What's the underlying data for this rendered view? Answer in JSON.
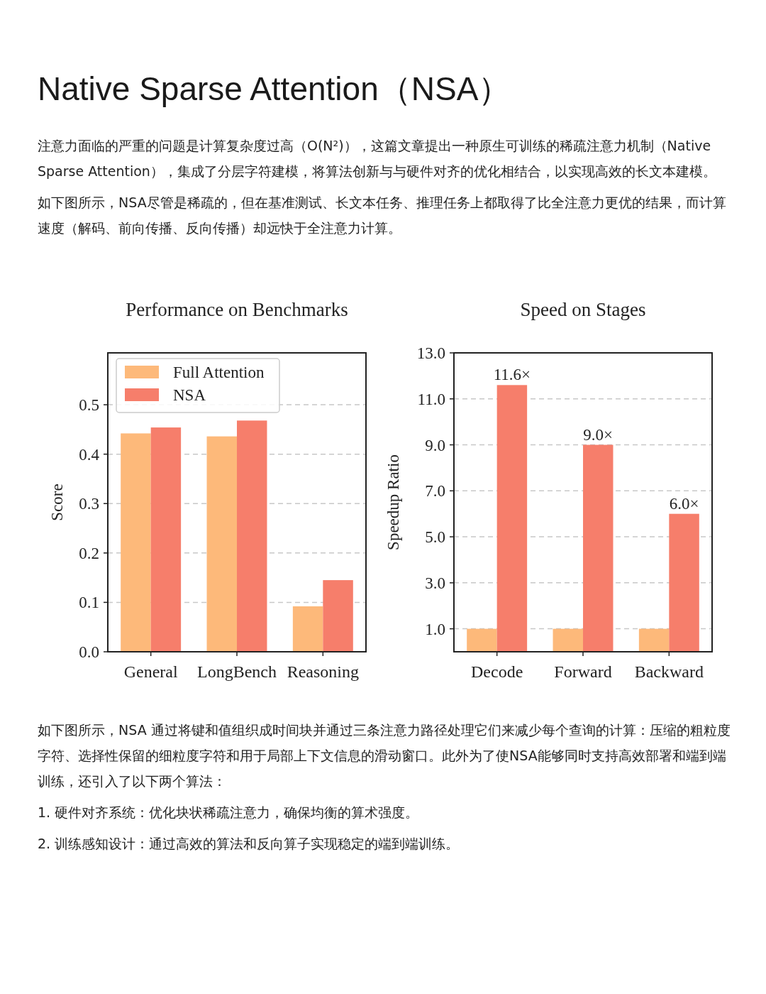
{
  "chart_data": [
    {
      "type": "other",
      "title": "Native Sparse Attention（NSA）",
      "annotations": [
        "注意力面临的严重的问题是计算复杂度过高（O(N²)），这篇文章提出一种原生可训练的稀疏注意力机制（Native Sparse Attention），集成了分层字符建模，将算法创新与与硬件对齐的优化相结合，以实现高效的长文本建模。",
        "如下图所示，NSA尽管是稀疏的，但在基准测试、长文本任务、推理任务上都取得了比全注意力更优的结果，而计算速度（解码、前向传播、反向传播）却远快于全注意力计算。"
      ]
    },
    {
      "type": "bar",
      "title": "Performance on Benchmarks",
      "ylabel": "Score",
      "categories": [
        "General",
        "LongBench",
        "Reasoning"
      ],
      "series": [
        {
          "name": "Full Attention",
          "color": "#fdb97a",
          "values": [
            0.442,
            0.436,
            0.092
          ]
        },
        {
          "name": "NSA",
          "color": "#f67e6b",
          "values": [
            0.454,
            0.468,
            0.145
          ]
        }
      ],
      "ylim": [
        0,
        0.605
      ],
      "yticks": [
        {
          "value": 0,
          "label": "0.0"
        },
        0.1,
        0.2,
        0.3,
        0.4,
        0.5
      ],
      "grid": "y",
      "legend": "top left"
    },
    {
      "type": "bar",
      "title": "Speed on Stages",
      "ylabel": "Speedup Ratio",
      "categories": [
        "Decode",
        "Forward",
        "Backward"
      ],
      "series": [
        {
          "color": "#fdb97a",
          "values": [
            1,
            1,
            1
          ]
        },
        {
          "color": "#f67e6b",
          "values": [
            11.6,
            9.0,
            6.0
          ],
          "value_labels": [
            "11.6×",
            "9.0×",
            "6.0×"
          ]
        }
      ],
      "ylim": [
        0,
        13
      ],
      "yticks": [
        {
          "value": 1,
          "label": "1.0"
        },
        {
          "value": 3,
          "label": "3.0"
        },
        {
          "value": 5,
          "label": "5.0"
        },
        {
          "value": 7,
          "label": "7.0"
        },
        {
          "value": 9,
          "label": "9.0"
        },
        {
          "value": 11,
          "label": "11.0"
        },
        {
          "value": 13,
          "label": "13.0"
        }
      ],
      "grid": "y"
    },
    {
      "type": "other",
      "annotations": [
        "如下图所示，NSA 通过将键和值组织成时间块并通过三条注意力路径处理它们来减少每个查询的计算：压缩的粗粒度字符、选择性保留的细粒度字符和用于局部上下文信息的滑动窗口。此外为了使NSA能够同时支持高效部署和端到端训练，还引入了以下两个算法：",
        "1. 硬件对齐系统：优化块状稀疏注意力，确保均衡的算术强度。",
        "2. 训练感知设计：通过高效的算法和反向算子实现稳定的端到端训练。"
      ]
    }
  ]
}
